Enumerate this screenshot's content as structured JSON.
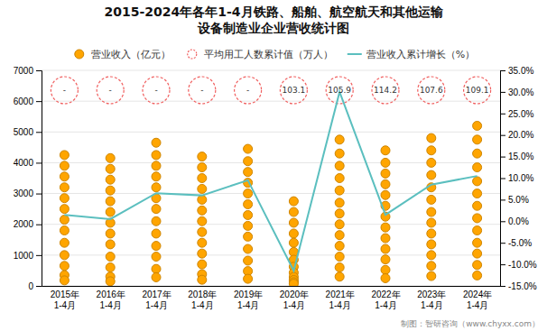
{
  "chart_data": {
    "type": "combo",
    "title": "2015-2024年各年1-4月铁路、船舶、航空航天和其他运输\n设备制造业企业营收统计图",
    "categories": [
      "2015年\n1-4月",
      "2016年\n1-4月",
      "2017年\n1-4月",
      "2018年\n1-4月",
      "2019年\n1-4月",
      "2020年\n1-4月",
      "2021年\n1-4月",
      "2022年\n1-4月",
      "2023年\n1-4月",
      "2024年\n1-4月"
    ],
    "ylim": [
      0,
      7000
    ],
    "yticks": [
      0,
      1000,
      2000,
      3000,
      4000,
      5000,
      6000,
      7000
    ],
    "y2lim": [
      -15.0,
      35.0
    ],
    "y2ticks": [
      {
        "value": -15,
        "label": "-15.0%"
      },
      {
        "value": -10,
        "label": "-10.0%"
      },
      {
        "value": -5,
        "label": "-5.0%"
      },
      {
        "value": 0,
        "label": "0.0%"
      },
      {
        "value": 5,
        "label": "5.0%"
      },
      {
        "value": 10,
        "label": "10.0%"
      },
      {
        "value": 15,
        "label": "15.0%"
      },
      {
        "value": 20,
        "label": "20.0%"
      },
      {
        "value": 25,
        "label": "25.0%"
      },
      {
        "value": 30,
        "label": "30.0%"
      },
      {
        "value": 35,
        "label": "35.0%"
      }
    ],
    "grid": true,
    "legend": "top",
    "annotations": [
      "制图：智研咨询（www.chyxx.com）"
    ],
    "series": [
      {
        "name": "营业收入（亿元）",
        "type": "scatter",
        "marker": "circle",
        "color": "#FFA500",
        "values": [
          [
            4250,
            3900,
            3550,
            3200,
            2850,
            2500,
            2150,
            1800,
            1400,
            1000,
            650,
            350,
            180
          ],
          [
            4150,
            3800,
            3450,
            3100,
            2750,
            2400,
            2050,
            1700,
            1350,
            950,
            600,
            300,
            150
          ],
          [
            4650,
            4250,
            3900,
            3550,
            3200,
            2850,
            2500,
            2100,
            1700,
            1300,
            950,
            550,
            280
          ],
          [
            4200,
            3850,
            3500,
            3150,
            2800,
            2450,
            2100,
            1750,
            1400,
            1050,
            700,
            380,
            200
          ],
          [
            4450,
            4050,
            3700,
            3350,
            3000,
            2650,
            2300,
            1950,
            1600,
            1200,
            820,
            480,
            230
          ],
          [
            2750,
            2400,
            2050,
            1700,
            1400,
            1100,
            850,
            620,
            430,
            290,
            190,
            120,
            70
          ],
          [
            4750,
            4300,
            3900,
            3500,
            3100,
            2700,
            2350,
            2000,
            1650,
            1300,
            950,
            600,
            300
          ],
          [
            4400,
            4000,
            3650,
            3300,
            2950,
            2600,
            2250,
            1900,
            1550,
            1200,
            860,
            520,
            250
          ],
          [
            4800,
            4400,
            4000,
            3600,
            3200,
            2800,
            2400,
            2050,
            1700,
            1350,
            1000,
            650,
            320
          ],
          [
            5200,
            4750,
            4300,
            3850,
            3400,
            3000,
            2600,
            2200,
            1800,
            1400,
            1050,
            680,
            340
          ]
        ]
      },
      {
        "name": "平均用工人数累计值（万人）",
        "type": "scatter",
        "marker": "circle",
        "line_style": "dashed",
        "color": "#F06060",
        "data_labels": true,
        "values": [
          null,
          null,
          null,
          null,
          null,
          103.1,
          105.9,
          114.2,
          107.6,
          109.1
        ],
        "value_labels": [
          "-",
          "-",
          "-",
          "-",
          "-",
          "103.1",
          "105.9",
          "114.2",
          "107.6",
          "109.1"
        ]
      },
      {
        "name": "营业收入累计增长（%）",
        "type": "line",
        "axis": "y2",
        "line_style": "solid",
        "color": "#5BBFBF",
        "values": [
          1.5,
          0.5,
          6.5,
          6.0,
          9.5,
          -11.5,
          30.0,
          1.5,
          8.5,
          10.5
        ]
      }
    ]
  }
}
